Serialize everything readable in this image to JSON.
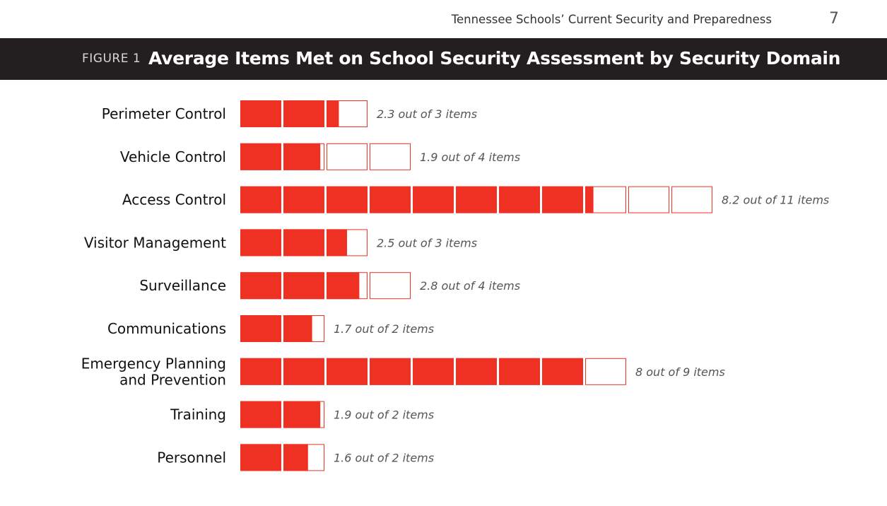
{
  "header": {
    "running_title": "Tennessee Schools’ Current Security and Preparedness",
    "page_number": "7"
  },
  "figure": {
    "label": "FIGURE 1",
    "title": "Average Items Met on School Security Assessment by Security Domain"
  },
  "colors": {
    "fill": "#ef3124",
    "outline": "#ef3124",
    "band": "#231f20"
  },
  "chart_data": {
    "type": "bar",
    "title": "Average Items Met on School Security Assessment by Security Domain",
    "xlabel": "",
    "ylabel": "",
    "grid": false,
    "legend": "none",
    "categories": [
      [
        "Perimeter Control"
      ],
      [
        "Vehicle Control"
      ],
      [
        "Access Control"
      ],
      [
        "Visitor Management"
      ],
      [
        "Surveillance"
      ],
      [
        "Communications"
      ],
      [
        "Emergency Planning",
        "and Prevention"
      ],
      [
        "Training"
      ],
      [
        "Personnel"
      ]
    ],
    "series": [
      {
        "values": [
          2.3,
          1.9,
          8.2,
          2.5,
          2.8,
          1.7,
          8,
          1.9,
          1.6
        ]
      }
    ],
    "totals": [
      3,
      4,
      11,
      3,
      4,
      2,
      9,
      2,
      2
    ],
    "value_labels": [
      "2.3 out of 3 items",
      "1.9 out of 4 items",
      "8.2 out of 11 items",
      "2.5 out of 3 items",
      "2.8 out of 4 items",
      "1.7 out of 2 items",
      "8 out of 9 items",
      "1.9 out of 2 items",
      "1.6 out of 2 items"
    ]
  }
}
